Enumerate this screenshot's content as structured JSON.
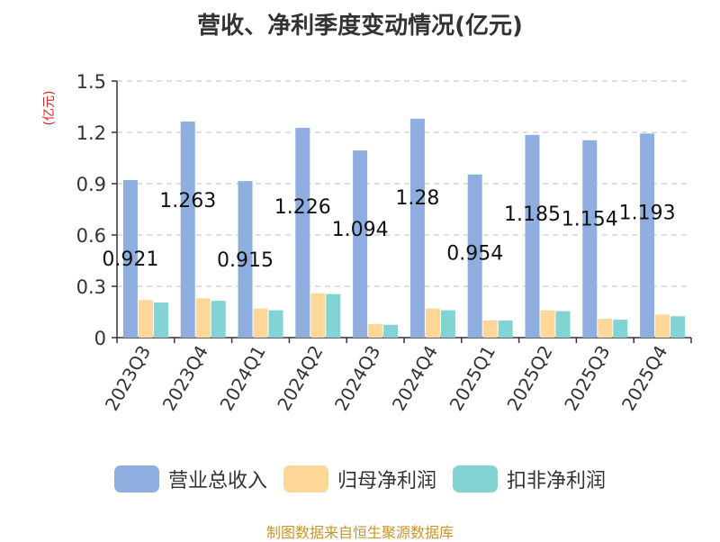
{
  "title": "营收、净利季度变动情况(亿元)",
  "unit_label": "(亿元)",
  "source": "制图数据来自恒生聚源数据库",
  "colors": {
    "revenue": "#8eaedf",
    "net_profit": "#ffd799",
    "deducted_profit": "#82d4d4",
    "unit_label": "#e02020",
    "source": "#c8962a",
    "grid": "#cccccc",
    "axis": "#333333"
  },
  "chart_data": {
    "type": "bar",
    "title": "营收、净利季度变动情况(亿元)",
    "ylabel": "(亿元)",
    "xlabel": "",
    "ylim": [
      0,
      1.5
    ],
    "yticks": [
      "0",
      "0.3",
      "0.6",
      "0.9",
      "1.2",
      "1.5"
    ],
    "grid": true,
    "legend_position": "bottom",
    "categories": [
      "2023Q3",
      "2023Q4",
      "2024Q1",
      "2024Q2",
      "2024Q3",
      "2024Q4",
      "2025Q1",
      "2025Q2",
      "2025Q3",
      "2025Q4"
    ],
    "series": [
      {
        "name": "营业总收入",
        "color": "#8eaedf",
        "values": [
          0.921,
          1.263,
          0.915,
          1.226,
          1.094,
          1.28,
          0.954,
          1.185,
          1.154,
          1.193
        ],
        "labels": [
          "0.921",
          "1.263",
          "0.915",
          "1.226",
          "1.094",
          "1.28",
          "0.954",
          "1.185",
          "1.154",
          "1.193"
        ]
      },
      {
        "name": "归母净利润",
        "color": "#ffd799",
        "values": [
          0.22,
          0.23,
          0.17,
          0.26,
          0.08,
          0.17,
          0.1,
          0.16,
          0.11,
          0.135
        ]
      },
      {
        "name": "扣非净利润",
        "color": "#82d4d4",
        "values": [
          0.205,
          0.215,
          0.16,
          0.255,
          0.075,
          0.16,
          0.1,
          0.155,
          0.105,
          0.125
        ]
      }
    ]
  }
}
